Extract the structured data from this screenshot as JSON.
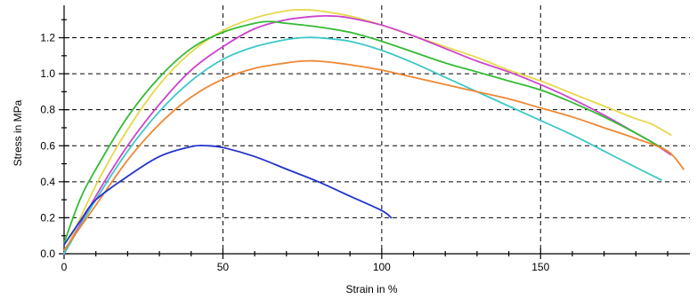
{
  "chart_data": {
    "type": "line",
    "title": "",
    "xlabel": "Strain in %",
    "ylabel": "Stress in MPa",
    "xlim": [
      0,
      197
    ],
    "ylim": [
      0,
      1.38
    ],
    "x_ticks": [
      0,
      50,
      100,
      150
    ],
    "x_tick_labels": [
      "0",
      "50",
      "100",
      "150"
    ],
    "y_ticks": [
      0.0,
      0.2,
      0.4,
      0.6,
      0.8,
      1.0,
      1.2
    ],
    "y_tick_labels": [
      "0.0",
      "0.2",
      "0.4",
      "0.6",
      "0.8",
      "1.0",
      "1.2"
    ],
    "grid": "dashed",
    "legend": "none",
    "series": [
      {
        "color": "#e6d84a",
        "x": [
          0,
          10,
          20,
          30,
          40,
          50,
          60,
          70,
          75,
          80,
          90,
          100,
          110,
          120,
          130,
          140,
          150,
          160,
          170,
          180,
          185,
          191
        ],
        "y": [
          0.0,
          0.38,
          0.69,
          0.94,
          1.12,
          1.24,
          1.31,
          1.35,
          1.355,
          1.35,
          1.32,
          1.27,
          1.21,
          1.15,
          1.09,
          1.02,
          0.96,
          0.89,
          0.82,
          0.75,
          0.72,
          0.66
        ]
      },
      {
        "color": "#cc44cc",
        "x": [
          0,
          10,
          20,
          30,
          40,
          50,
          60,
          70,
          80,
          85,
          90,
          100,
          110,
          120,
          130,
          140,
          150,
          160,
          170,
          180,
          185,
          191
        ],
        "y": [
          0.0,
          0.32,
          0.6,
          0.83,
          1.02,
          1.15,
          1.25,
          1.3,
          1.32,
          1.32,
          1.31,
          1.27,
          1.21,
          1.14,
          1.07,
          1.01,
          0.94,
          0.86,
          0.77,
          0.67,
          0.62,
          0.55
        ]
      },
      {
        "color": "#33bb33",
        "x": [
          0,
          5,
          10,
          20,
          30,
          40,
          50,
          60,
          65,
          70,
          80,
          90,
          100,
          110,
          120,
          130,
          140,
          150,
          160,
          170,
          180,
          190
        ],
        "y": [
          0.06,
          0.3,
          0.47,
          0.76,
          0.98,
          1.14,
          1.23,
          1.28,
          1.29,
          1.28,
          1.26,
          1.23,
          1.18,
          1.12,
          1.06,
          1.01,
          0.96,
          0.91,
          0.84,
          0.76,
          0.67,
          0.57
        ]
      },
      {
        "color": "#3dc8c8",
        "x": [
          0,
          10,
          20,
          30,
          40,
          50,
          60,
          70,
          75,
          80,
          90,
          100,
          110,
          120,
          130,
          140,
          150,
          160,
          170,
          180,
          188
        ],
        "y": [
          0.0,
          0.3,
          0.57,
          0.79,
          0.96,
          1.08,
          1.15,
          1.19,
          1.2,
          1.2,
          1.18,
          1.13,
          1.06,
          0.98,
          0.9,
          0.82,
          0.74,
          0.66,
          0.57,
          0.48,
          0.41
        ]
      },
      {
        "color": "#ee8833",
        "x": [
          0,
          10,
          20,
          30,
          40,
          50,
          60,
          70,
          75,
          80,
          90,
          100,
          110,
          120,
          130,
          140,
          150,
          160,
          170,
          180,
          190,
          195
        ],
        "y": [
          0.02,
          0.27,
          0.52,
          0.72,
          0.87,
          0.97,
          1.03,
          1.06,
          1.07,
          1.07,
          1.05,
          1.02,
          0.98,
          0.94,
          0.9,
          0.86,
          0.81,
          0.76,
          0.7,
          0.64,
          0.57,
          0.47
        ]
      },
      {
        "color": "#2233cc",
        "x": [
          0,
          5,
          10,
          20,
          30,
          40,
          45,
          50,
          60,
          70,
          80,
          90,
          100,
          103
        ],
        "y": [
          0.05,
          0.18,
          0.3,
          0.43,
          0.54,
          0.595,
          0.6,
          0.59,
          0.54,
          0.47,
          0.4,
          0.32,
          0.24,
          0.2
        ]
      }
    ]
  }
}
